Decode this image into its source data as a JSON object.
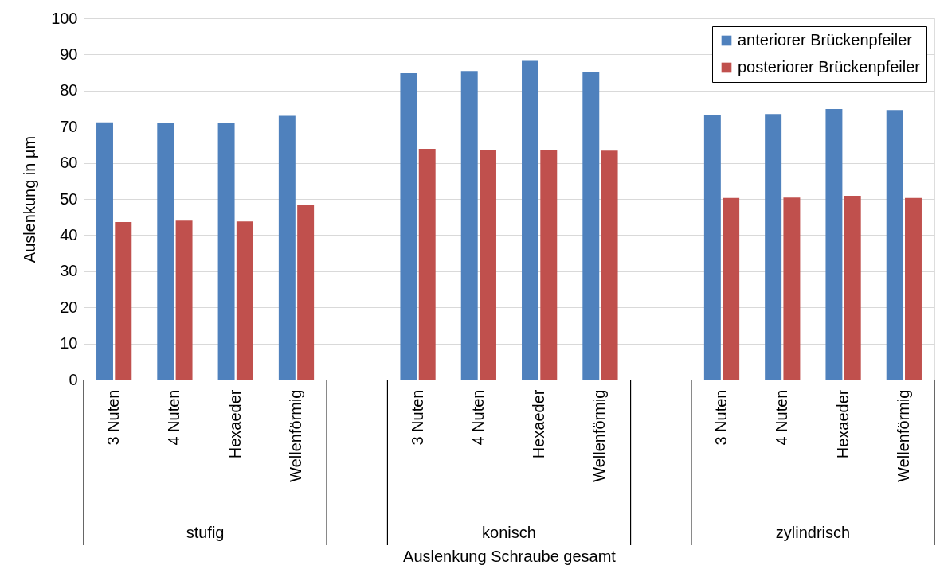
{
  "chart_data": {
    "type": "bar",
    "xlabel": "Auslenkung Schraube gesamt",
    "ylabel": "Auslenkung in µm",
    "categories": [
      "3 Nuten",
      "4 Nuten",
      "Hexaeder",
      "Wellenförmig",
      null,
      "3 Nuten",
      "4 Nuten",
      "Hexaeder",
      "Wellenförmig",
      null,
      "3 Nuten",
      "4 Nuten",
      "Hexaeder",
      "Wellenförmig"
    ],
    "series": [
      {
        "name": "anteriorer Brückenpfeiler",
        "color": "#4f81bd",
        "values": [
          71.2,
          71.0,
          71.0,
          73.0,
          null,
          84.8,
          85.4,
          88.2,
          85.0,
          null,
          73.3,
          73.5,
          74.9,
          74.6
        ]
      },
      {
        "name": "posteriorer Brückenpfeiler",
        "color": "#c0504d",
        "values": [
          43.6,
          44.0,
          43.8,
          48.4,
          null,
          63.9,
          63.6,
          63.6,
          63.4,
          null,
          50.3,
          50.4,
          50.9,
          50.3
        ]
      }
    ],
    "annotations": [
      "stufig",
      "konisch",
      "zylindrisch"
    ],
    "ylim": [
      0,
      100
    ],
    "yticks": [
      0,
      10,
      20,
      30,
      40,
      50,
      60,
      70,
      80,
      90,
      100
    ],
    "grid": "y",
    "legend": "top right"
  }
}
